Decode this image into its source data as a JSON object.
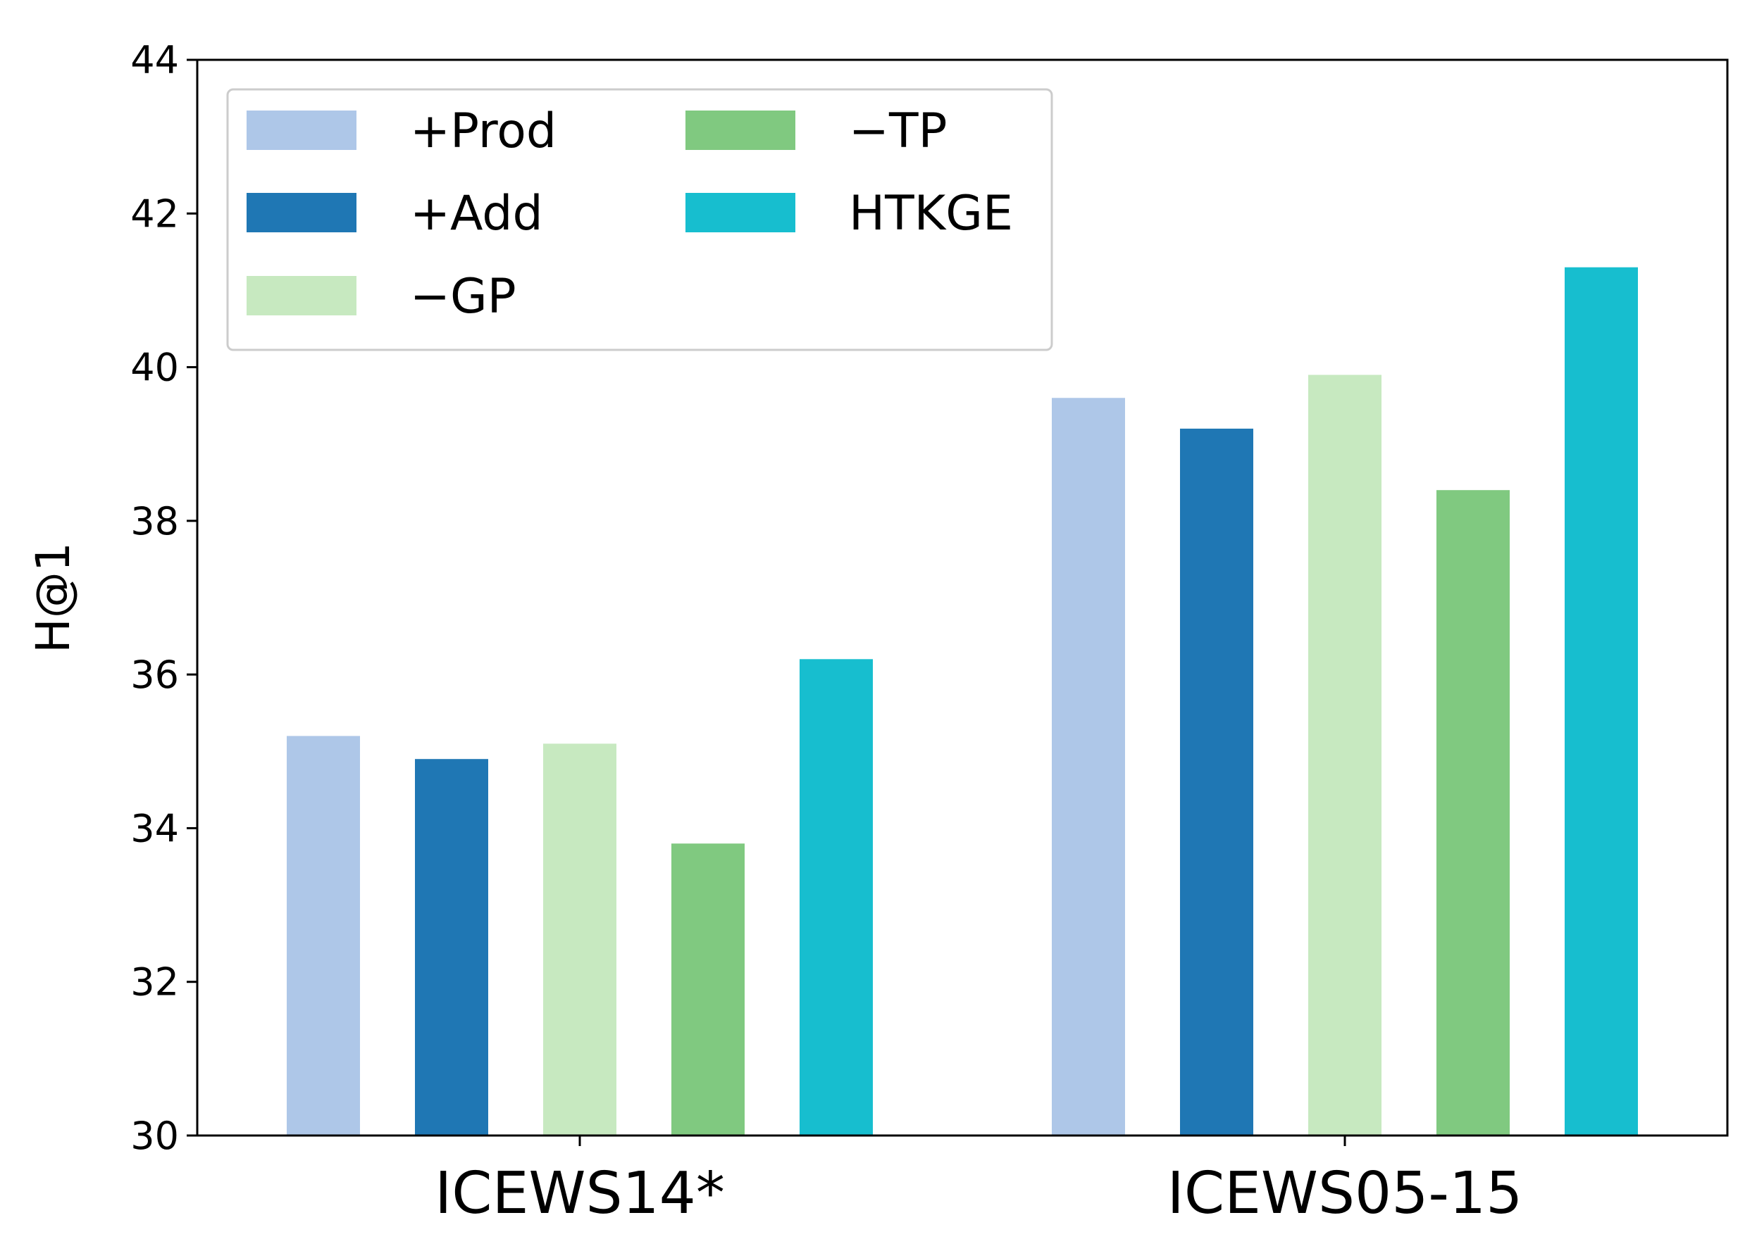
{
  "chart_data": {
    "type": "bar",
    "title": "",
    "xlabel": "",
    "ylabel": "H@1",
    "ylim": [
      30,
      44
    ],
    "yticks": [
      30,
      32,
      34,
      36,
      38,
      40,
      42,
      44
    ],
    "categories": [
      "ICEWS14*",
      "ICEWS05-15"
    ],
    "series": [
      {
        "name": "+Prod",
        "color": "#aec7e8",
        "values": [
          35.2,
          39.6
        ]
      },
      {
        "name": "+Add",
        "color": "#1f77b4",
        "values": [
          34.9,
          39.2
        ]
      },
      {
        "name": "−GP",
        "color": "#c7e9c0",
        "values": [
          35.1,
          39.9
        ]
      },
      {
        "name": "−TP",
        "color": "#80c980",
        "values": [
          33.8,
          38.4
        ]
      },
      {
        "name": "HTKGE",
        "color": "#17becf",
        "values": [
          36.2,
          41.3
        ]
      }
    ],
    "legend": {
      "position": "top-left",
      "columns": 2
    },
    "grid": false
  }
}
